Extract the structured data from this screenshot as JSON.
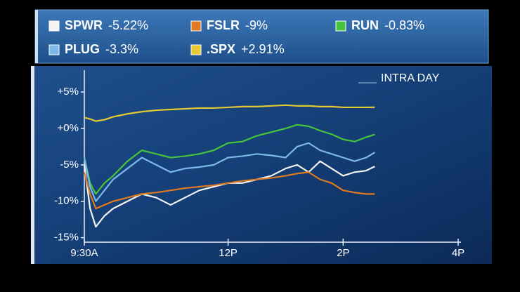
{
  "chart_data": {
    "type": "line",
    "annotation": "INTRA DAY",
    "x": [
      9.5,
      9.6,
      9.7,
      9.85,
      10,
      10.25,
      10.5,
      10.75,
      11,
      11.25,
      11.5,
      11.75,
      12,
      12.25,
      12.5,
      12.75,
      13,
      13.2,
      13.4,
      13.6,
      13.8,
      14,
      14.2,
      14.4,
      14.55
    ],
    "xlim": [
      9.5,
      16
    ],
    "xticks": [
      {
        "value": 9.5,
        "label": "9:30A"
      },
      {
        "value": 12,
        "label": "12P"
      },
      {
        "value": 14,
        "label": "2P"
      },
      {
        "value": 16,
        "label": "4P"
      }
    ],
    "ylim": [
      -16,
      8
    ],
    "yticks": [
      {
        "value": 5,
        "label": "+5%"
      },
      {
        "value": 0,
        "label": "+0%"
      },
      {
        "value": -5,
        "label": "-5%"
      },
      {
        "value": -10,
        "label": "-10%"
      },
      {
        "value": -15,
        "label": "-15%"
      }
    ],
    "grid": false,
    "series": [
      {
        "name": "SPWR",
        "color": "#f4f4f4",
        "change": -5.22,
        "change_label": "-5.22%",
        "values": [
          -5,
          -11,
          -13.5,
          -12,
          -11,
          -10,
          -9,
          -9.5,
          -10.5,
          -9.5,
          -8.5,
          -8,
          -7.5,
          -7.5,
          -7,
          -6.5,
          -5.5,
          -5,
          -6,
          -4.5,
          -5.5,
          -6.5,
          -6,
          -5.8,
          -5.22
        ]
      },
      {
        "name": "FSLR",
        "color": "#e07a22",
        "change": -9,
        "change_label": "-9%",
        "values": [
          -6,
          -9,
          -11,
          -10.5,
          -10,
          -9.5,
          -9,
          -8.8,
          -8.5,
          -8.2,
          -8,
          -7.8,
          -7.5,
          -7.2,
          -7,
          -6.8,
          -6.5,
          -6.2,
          -6,
          -7,
          -7.5,
          -8.5,
          -8.8,
          -9,
          -9
        ]
      },
      {
        "name": "RUN",
        "color": "#46c43c",
        "change": -0.83,
        "change_label": "-0.83%",
        "values": [
          -4,
          -7.5,
          -9,
          -7.5,
          -6.5,
          -4.5,
          -3,
          -3.5,
          -4,
          -3.8,
          -3.5,
          -3,
          -2,
          -1.8,
          -1,
          -0.5,
          0,
          0.5,
          0.3,
          -0.3,
          -0.8,
          -1.5,
          -1.8,
          -1.2,
          -0.83
        ]
      },
      {
        "name": "PLUG",
        "color": "#7cb9ea",
        "change": -3.3,
        "change_label": "-3.3%",
        "values": [
          -4,
          -8,
          -10,
          -8.5,
          -7,
          -5.5,
          -4,
          -5,
          -6,
          -5.5,
          -5.3,
          -5,
          -4,
          -3.8,
          -3.5,
          -3.7,
          -4,
          -2.5,
          -2,
          -3,
          -3.5,
          -4,
          -4.5,
          -4,
          -3.3
        ]
      },
      {
        "name": ".SPX",
        "color": "#e6c831",
        "change": 2.91,
        "change_label": "+2.91%",
        "values": [
          1.5,
          1.3,
          1,
          1.2,
          1.6,
          2,
          2.3,
          2.5,
          2.6,
          2.7,
          2.8,
          2.8,
          2.9,
          3,
          3,
          3.1,
          3.2,
          3.1,
          3.1,
          3,
          3,
          2.9,
          2.9,
          2.9,
          2.91
        ]
      }
    ]
  }
}
